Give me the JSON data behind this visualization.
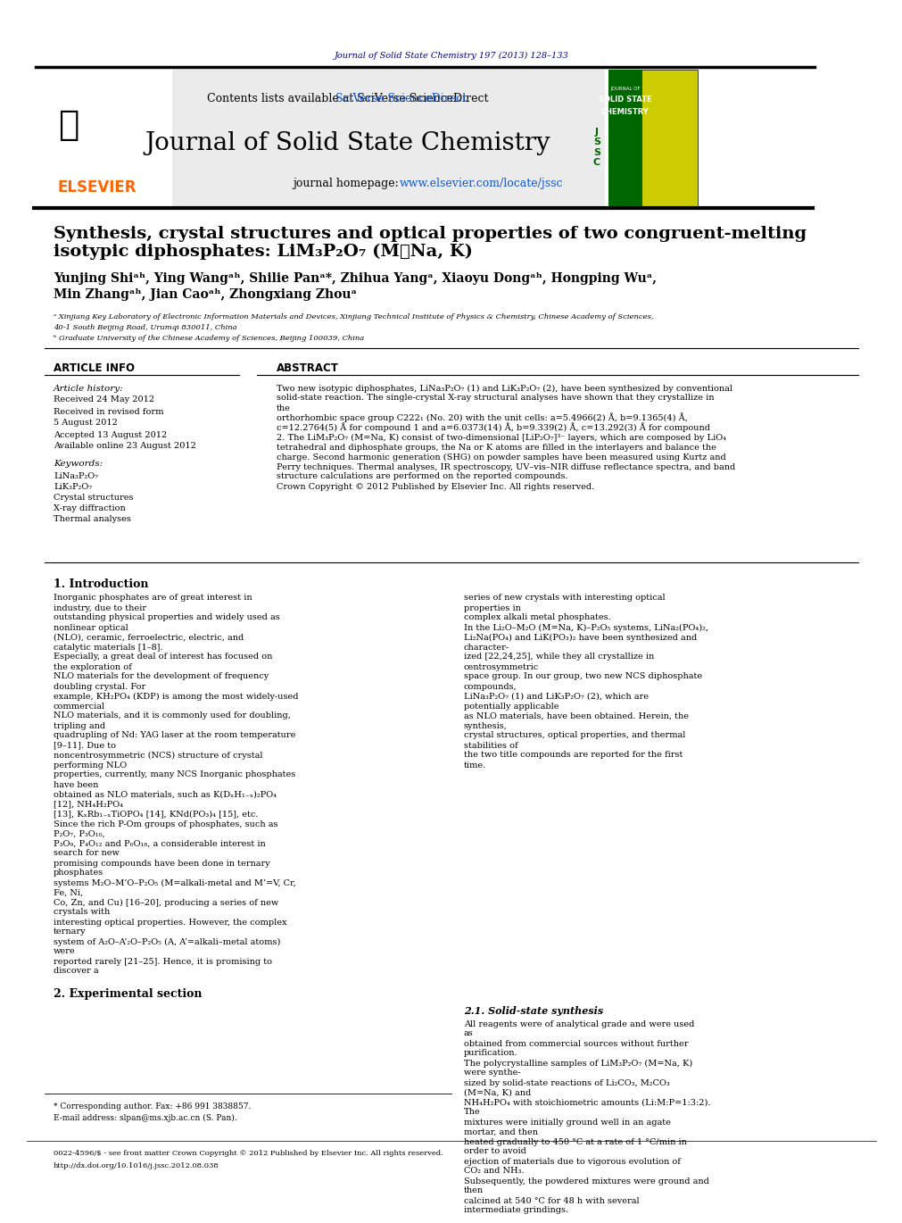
{
  "journal_header": "Journal of Solid State Chemistry 197 (2013) 128–133",
  "contents_line": "Contents lists available at SciVerse ScienceDirect",
  "journal_title": "Journal of Solid State Chemistry",
  "journal_homepage": "journal homepage: www.elsevier.com/locate/jssc",
  "paper_title_line1": "Synthesis, crystal structures and optical properties of two congruent-melting",
  "paper_title_line2": "isotypic diphosphates: LiM₃P₂O₇ (M＝Na, K)",
  "authors": "Yunjing Shiᵃʰ, Ying Wangᵃʰ, Shilie Panᵃ*, Zhihua Yangᵃ, Xiaoyu Dongᵃʰ, Hongping Wuᵃ,",
  "authors2": "Min Zhangᵃʰ, Jian Caoᵃʰ, Zhongxiang Zhouᵃ",
  "affil1": "ᵃ Xinjiang Key Laboratory of Electronic Information Materials and Devices, Xinjiang Technical Institute of Physics & Chemistry, Chinese Academy of Sciences,",
  "affil1b": "40-1 South Beijing Road, Urumqi 830011, China",
  "affil2": "ᵇ Graduate University of the Chinese Academy of Sciences, Beijing 100039, China",
  "article_info_title": "ARTICLE INFO",
  "article_history_title": "Article history:",
  "received1": "Received 24 May 2012",
  "received_revised": "Received in revised form",
  "revised_date": "5 August 2012",
  "accepted": "Accepted 13 August 2012",
  "available": "Available online 23 August 2012",
  "keywords_title": "Keywords:",
  "kw1": "LiNa₃P₂O₇",
  "kw2": "LiK₃P₂O₇",
  "kw3": "Crystal structures",
  "kw4": "X-ray diffraction",
  "kw5": "Thermal analyses",
  "abstract_title": "ABSTRACT",
  "abstract_text": "Two new isotypic diphosphates, LiNa₃P₂O₇ (1) and LiK₃P₂O₇ (2), have been synthesized by conventional\nsolid-state reaction. The single-crystal X-ray structural analyses have shown that they crystallize in the\northorhombic space group C222₁ (No. 20) with the unit cells: a=5.4966(2) Å, b=9.1365(4) Å,\nc=12.2764(5) Å for compound 1 and a=6.0373(14) Å, b=9.339(2) Å, c=13.292(3) Å for compound\n2. The LiM₃P₂O₇ (M=Na, K) consist of two-dimensional [LiP₂O₇]³⁻ layers, which are composed by LiO₄\ntetrahedral and diphosphate groups, the Na or K atoms are filled in the interlayers and balance the\ncharge. Second harmonic generation (SHG) on powder samples have been measured using Kurtz and\nPerry techniques. Thermal analyses, IR spectroscopy, UV–vis–NIR diffuse reflectance spectra, and band\nstructure calculations are performed on the reported compounds.\nCrown Copyright © 2012 Published by Elsevier Inc. All rights reserved.",
  "intro_title": "1. Introduction",
  "intro_col1": "Inorganic phosphates are of great interest in industry, due to their\noutstanding physical properties and widely used as nonlinear optical\n(NLO), ceramic, ferroelectric, electric, and catalytic materials [1–8].\nEspecially, a great deal of interest has focused on the exploration of\nNLO materials for the development of frequency doubling crystal. For\nexample, KH₂PO₄ (KDP) is among the most widely-used commercial\nNLO materials, and it is commonly used for doubling, tripling and\nquadrupling of Nd: YAG laser at the room temperature [9–11]. Due to\nnoncentrosymmetric (NCS) structure of crystal performing NLO\nproperties, currently, many NCS Inorganic phosphates have been\nobtained as NLO materials, such as K(DₓH₁₋ₓ)₂PO₄ [12], NH₄H₂PO₄\n[13], KₓRb₁₋ₓTiOPO₄ [14], KNd(PO₃)₄ [15], etc.\n    Since the rich P-Om groups of phosphates, such as P₂O₇, P₃O₁₀,\nP₃O₉, P₄O₁₂ and P₆O₁₈, a considerable interest in search for new\npromising compounds have been done in ternary phosphates\nsystems M₂O–M’O–P₂O₅ (M=alkali-metal and M’=V, Cr, Fe, Ni,\nCo, Zn, and Cu) [16–20], producing a series of new crystals with\ninteresting optical properties. However, the complex ternary\nsystem of A₂O–A’₂O–P₂O₅ (A, A’=alkali–metal atoms) were\nreported rarely [21–25]. Hence, it is promising to discover a",
  "intro_col2": "series of new crystals with interesting optical properties in\ncomplex alkali metal phosphates.\n    In the Li₂O–M₂O (M=Na, K)–P₂O₅ systems, LiNa₂(PO₄)₂,\nLi₂Na(PO₄) and LiK(PO₃)₂ have been synthesized and character-\nized [22,24,25], while they all crystallize in centrosymmetric\nspace group. In our group, two new NCS diphosphate compounds,\nLiNa₃P₂O₇ (1) and LiK₃P₂O₇ (2), which are potentially applicable\nas NLO materials, have been obtained. Herein, the synthesis,\ncrystal structures, optical properties, and thermal stabilities of\nthe two title compounds are reported for the first time.",
  "exp_title": "2. Experimental section",
  "exp_sub1": "2.1. Solid-state synthesis",
  "exp_col2_text": "All reagents were of analytical grade and were used as\nobtained from commercial sources without further purification.\nThe polycrystalline samples of LiM₃P₂O₇ (M=Na, K) were synthe-\nsized by solid-state reactions of Li₂CO₃, M₂CO₃ (M=Na, K) and\nNH₄H₂PO₄ with stoichiometric amounts (Li:M:P=1:3:2). The\nmixtures were initially ground well in an agate mortar, and then\nheated gradually to 450 °C at a rate of 1 °C/min in order to avoid\nejection of materials due to vigorous evolution of CO₂ and NH₃.\nSubsequently, the powdered mixtures were ground and then\ncalcined at 540 °C for 48 h with several intermediate grindings.",
  "footnote_corr": "* Corresponding author. Fax: +86 991 3838857.",
  "footnote_email": "E-mail address: slpan@ms.xjb.ac.cn (S. Pan).",
  "footer_issn": "0022-4596/$ - see front matter Crown Copyright © 2012 Published by Elsevier Inc. All rights reserved.",
  "footer_doi": "http://dx.doi.org/10.1016/j.jssc.2012.08.038",
  "elsevier_color": "#FF6600",
  "journal_link_color": "#1155CC",
  "header_text_color": "#000080",
  "bg_header_color": "#E8E8E8",
  "title_font_size": 14,
  "author_font_size": 10,
  "body_font_size": 7.5,
  "small_font_size": 6.5
}
